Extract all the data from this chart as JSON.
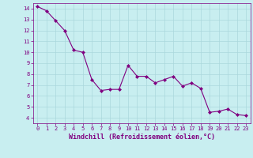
{
  "x": [
    0,
    1,
    2,
    3,
    4,
    5,
    6,
    7,
    8,
    9,
    10,
    11,
    12,
    13,
    14,
    15,
    16,
    17,
    18,
    19,
    20,
    21,
    22,
    23
  ],
  "y": [
    14.2,
    13.8,
    12.9,
    12.0,
    10.2,
    10.0,
    7.5,
    6.5,
    6.6,
    6.6,
    8.8,
    7.8,
    7.8,
    7.2,
    7.5,
    7.8,
    6.9,
    7.2,
    6.7,
    4.5,
    4.6,
    4.8,
    4.3,
    4.2
  ],
  "line_color": "#800080",
  "marker": "D",
  "marker_size": 2,
  "bg_color": "#c8eef0",
  "grid_color": "#aad8dc",
  "xlabel": "Windchill (Refroidissement éolien,°C)",
  "xlim": [
    -0.5,
    23.5
  ],
  "ylim": [
    3.5,
    14.5
  ],
  "yticks": [
    4,
    5,
    6,
    7,
    8,
    9,
    10,
    11,
    12,
    13,
    14
  ],
  "xticks": [
    0,
    1,
    2,
    3,
    4,
    5,
    6,
    7,
    8,
    9,
    10,
    11,
    12,
    13,
    14,
    15,
    16,
    17,
    18,
    19,
    20,
    21,
    22,
    23
  ],
  "tick_color": "#800080",
  "label_color": "#800080",
  "spine_color": "#800080",
  "tick_fontsize": 5,
  "xlabel_fontsize": 6,
  "linewidth": 0.8
}
